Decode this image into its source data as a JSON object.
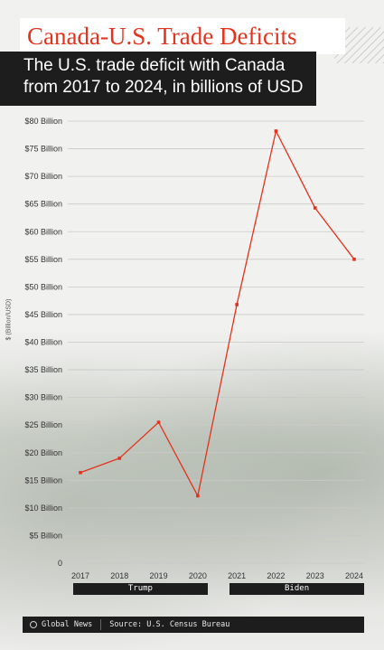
{
  "title": "Canada-U.S. Trade Deficits",
  "subtitle_line1": "The U.S. trade deficit with Canada",
  "subtitle_line2": "from 2017 to 2024, in billions of USD",
  "ylabel": "$ (Billion/USD)",
  "chart_data": {
    "type": "line",
    "title": "Canada-U.S. Trade Deficits",
    "subtitle": "The U.S. trade deficit with Canada from 2017 to 2024, in billions of USD",
    "ylabel": "$ (Billion/USD)",
    "ylim": [
      0,
      80
    ],
    "grid": true,
    "y_tick_values": [
      0,
      5,
      10,
      15,
      20,
      25,
      30,
      35,
      40,
      45,
      50,
      55,
      60,
      65,
      70,
      75,
      80
    ],
    "y_tick_labels": [
      "0",
      "$5 Billion",
      "$10 Billion",
      "$15 Billion",
      "$20 Billion",
      "$25 Billion",
      "$30 Billion",
      "$35 Billion",
      "$40 Billion",
      "$45 Billion",
      "$50 Billion",
      "$55 Billion",
      "$60 Billion",
      "$65 Billion",
      "$70 Billion",
      "$75 Billion",
      "$80 Billion"
    ],
    "x": [
      "2017",
      "2018",
      "2019",
      "2020",
      "2021",
      "2022",
      "2023",
      "2024"
    ],
    "series": [
      {
        "values": [
          16.4,
          19.0,
          25.5,
          12.2,
          46.8,
          78.2,
          64.3,
          55.0
        ]
      }
    ],
    "line_color": "#e4321c"
  },
  "periods": [
    {
      "label": "Trump",
      "years": [
        "2017",
        "2020"
      ]
    },
    {
      "label": "Biden",
      "years": [
        "2021",
        "2024"
      ]
    }
  ],
  "footer": {
    "brand": "Global News",
    "source": "Source: U.S. Census Bureau"
  }
}
